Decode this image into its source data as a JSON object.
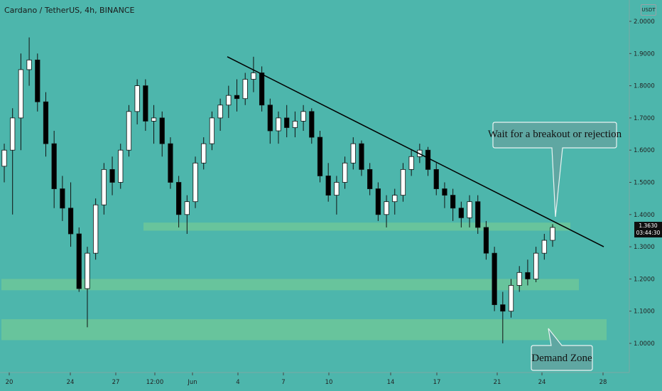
{
  "header": {
    "title": "Cardano / TetherUS, 4h, BINANCE"
  },
  "axis": {
    "currency": "USDT"
  },
  "last_price": {
    "value": "1.3630",
    "countdown": "03:44:30"
  },
  "annotations": {
    "callout_breakout": "Wait for a breakout or rejection",
    "callout_demand": "Demand Zone"
  },
  "colors": {
    "background": "#4db6ac",
    "zone": "#6cc59a",
    "trendline": "#000000",
    "candle_body": "#ffffff",
    "candle_bear": "#000000"
  },
  "chart_data": {
    "type": "candlestick",
    "symbol": "ADAUSDT",
    "interval": "4h",
    "exchange": "BINANCE",
    "y_axis": {
      "ticks": [
        "2.0000",
        "1.9000",
        "1.8000",
        "1.7000",
        "1.6000",
        "1.5000",
        "1.4000",
        "1.3000",
        "1.2000",
        "1.1000",
        "1.0000"
      ],
      "range": [
        0.94,
        2.06
      ]
    },
    "x_axis": {
      "ticks": [
        "20",
        "24",
        "27",
        "12:00",
        "Jun",
        "4",
        "7",
        "10",
        "14",
        "17",
        "21",
        "24",
        "28"
      ]
    },
    "trendline": {
      "from": {
        "x": "Jun 3",
        "price": 1.89
      },
      "to": {
        "x": "Jun 27",
        "price": 1.3
      }
    },
    "zones": [
      {
        "label": "",
        "top": 1.375,
        "bottom": 1.35
      },
      {
        "label": "",
        "top": 1.2,
        "bottom": 1.165
      },
      {
        "label": "Demand Zone",
        "top": 1.075,
        "bottom": 1.01
      }
    ],
    "candles": [
      [
        1.55,
        1.62,
        1.5,
        1.6
      ],
      [
        1.6,
        1.73,
        1.4,
        1.7
      ],
      [
        1.7,
        1.9,
        1.6,
        1.85
      ],
      [
        1.85,
        1.95,
        1.8,
        1.88
      ],
      [
        1.88,
        1.9,
        1.72,
        1.75
      ],
      [
        1.75,
        1.78,
        1.58,
        1.62
      ],
      [
        1.62,
        1.66,
        1.42,
        1.48
      ],
      [
        1.48,
        1.52,
        1.38,
        1.42
      ],
      [
        1.42,
        1.5,
        1.3,
        1.34
      ],
      [
        1.34,
        1.36,
        1.16,
        1.17
      ],
      [
        1.17,
        1.3,
        1.05,
        1.28
      ],
      [
        1.28,
        1.45,
        1.26,
        1.43
      ],
      [
        1.43,
        1.56,
        1.4,
        1.54
      ],
      [
        1.54,
        1.58,
        1.46,
        1.5
      ],
      [
        1.5,
        1.62,
        1.48,
        1.6
      ],
      [
        1.6,
        1.74,
        1.58,
        1.72
      ],
      [
        1.72,
        1.82,
        1.68,
        1.8
      ],
      [
        1.8,
        1.82,
        1.66,
        1.69
      ],
      [
        1.69,
        1.74,
        1.62,
        1.7
      ],
      [
        1.7,
        1.72,
        1.58,
        1.62
      ],
      [
        1.62,
        1.64,
        1.48,
        1.5
      ],
      [
        1.5,
        1.52,
        1.36,
        1.4
      ],
      [
        1.4,
        1.46,
        1.34,
        1.44
      ],
      [
        1.44,
        1.58,
        1.42,
        1.56
      ],
      [
        1.56,
        1.64,
        1.54,
        1.62
      ],
      [
        1.62,
        1.72,
        1.6,
        1.7
      ],
      [
        1.7,
        1.76,
        1.66,
        1.74
      ],
      [
        1.74,
        1.8,
        1.7,
        1.77
      ],
      [
        1.77,
        1.82,
        1.72,
        1.76
      ],
      [
        1.76,
        1.84,
        1.74,
        1.82
      ],
      [
        1.82,
        1.89,
        1.78,
        1.84
      ],
      [
        1.84,
        1.86,
        1.72,
        1.74
      ],
      [
        1.74,
        1.76,
        1.62,
        1.66
      ],
      [
        1.66,
        1.72,
        1.62,
        1.7
      ],
      [
        1.7,
        1.74,
        1.64,
        1.67
      ],
      [
        1.67,
        1.72,
        1.64,
        1.69
      ],
      [
        1.69,
        1.74,
        1.66,
        1.72
      ],
      [
        1.72,
        1.73,
        1.62,
        1.64
      ],
      [
        1.64,
        1.66,
        1.5,
        1.52
      ],
      [
        1.52,
        1.56,
        1.44,
        1.46
      ],
      [
        1.46,
        1.52,
        1.4,
        1.5
      ],
      [
        1.5,
        1.58,
        1.48,
        1.56
      ],
      [
        1.56,
        1.64,
        1.54,
        1.62
      ],
      [
        1.62,
        1.63,
        1.52,
        1.54
      ],
      [
        1.54,
        1.56,
        1.46,
        1.48
      ],
      [
        1.48,
        1.5,
        1.38,
        1.4
      ],
      [
        1.4,
        1.46,
        1.36,
        1.44
      ],
      [
        1.44,
        1.48,
        1.4,
        1.46
      ],
      [
        1.46,
        1.56,
        1.44,
        1.54
      ],
      [
        1.54,
        1.6,
        1.52,
        1.58
      ],
      [
        1.58,
        1.62,
        1.56,
        1.6
      ],
      [
        1.6,
        1.61,
        1.52,
        1.54
      ],
      [
        1.54,
        1.56,
        1.46,
        1.48
      ],
      [
        1.48,
        1.5,
        1.42,
        1.46
      ],
      [
        1.46,
        1.48,
        1.38,
        1.42
      ],
      [
        1.42,
        1.44,
        1.36,
        1.39
      ],
      [
        1.39,
        1.46,
        1.36,
        1.44
      ],
      [
        1.44,
        1.46,
        1.34,
        1.36
      ],
      [
        1.36,
        1.38,
        1.26,
        1.28
      ],
      [
        1.28,
        1.3,
        1.1,
        1.12
      ],
      [
        1.12,
        1.16,
        1.0,
        1.1
      ],
      [
        1.1,
        1.2,
        1.08,
        1.18
      ],
      [
        1.18,
        1.24,
        1.16,
        1.22
      ],
      [
        1.22,
        1.26,
        1.18,
        1.2
      ],
      [
        1.2,
        1.3,
        1.19,
        1.28
      ],
      [
        1.28,
        1.34,
        1.26,
        1.32
      ],
      [
        1.32,
        1.37,
        1.3,
        1.36
      ]
    ]
  }
}
